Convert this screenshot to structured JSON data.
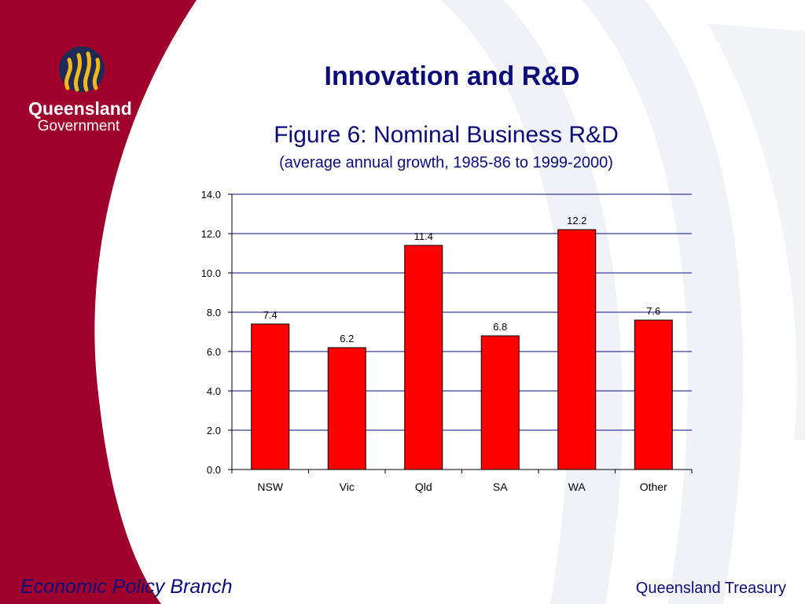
{
  "slide": {
    "heading": "Innovation and R&D",
    "footer_left": "Economic Policy Branch",
    "footer_right": "Queensland Treasury"
  },
  "logo": {
    "line1": "Queensland",
    "line2": "Government",
    "icon": "queensland-government-flame-logo"
  },
  "colors": {
    "maroon": "#a0002c",
    "navy": "#0c0c7a",
    "bar_fill": "#ff0000",
    "logo_gold": "#f2b81b"
  },
  "chart_data": {
    "type": "bar",
    "title": "Figure 6: Nominal Business R&D",
    "subtitle": "(average annual growth, 1985-86 to 1999-2000)",
    "categories": [
      "NSW",
      "Vic",
      "Qld",
      "SA",
      "WA",
      "Other"
    ],
    "values": [
      7.4,
      6.2,
      11.4,
      6.8,
      12.2,
      7.6
    ],
    "value_labels": [
      "7.4",
      "6.2",
      "11.4",
      "6.8",
      "12.2",
      "7.6"
    ],
    "yticks": [
      "0.0",
      "2.0",
      "4.0",
      "6.0",
      "8.0",
      "10.0",
      "12.0",
      "14.0"
    ],
    "ylim": [
      0,
      14
    ],
    "xlabel": "",
    "ylabel": "",
    "grid": true,
    "legend": "none"
  }
}
